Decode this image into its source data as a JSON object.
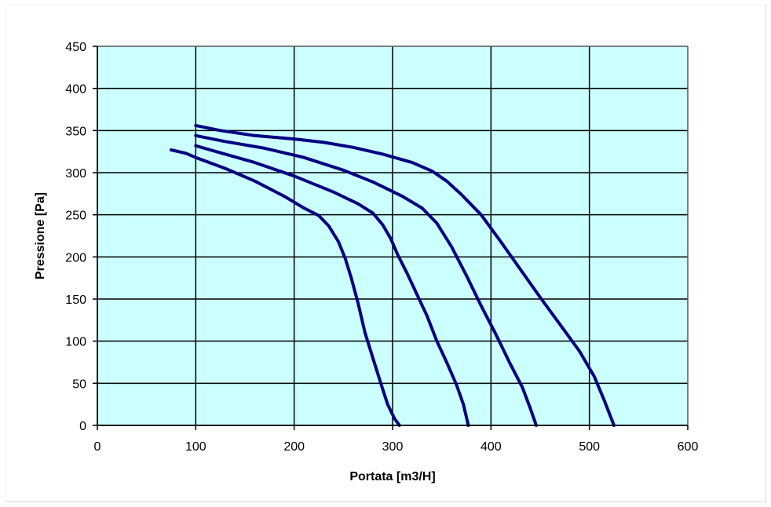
{
  "chart_data": {
    "type": "line",
    "title": "",
    "xlabel": "Portata [m3/H]",
    "ylabel": "Pressione [Pa]",
    "xlim": [
      0,
      600
    ],
    "ylim": [
      0,
      450
    ],
    "xticks": [
      0,
      100,
      200,
      300,
      400,
      500,
      600
    ],
    "yticks": [
      0,
      50,
      100,
      150,
      200,
      250,
      300,
      350,
      400,
      450
    ],
    "grid": true,
    "legend": "none",
    "colors": {
      "plot_background": "#ccffff",
      "line": "#000080",
      "grid": "#000000"
    },
    "series": [
      {
        "x": [
          75,
          90,
          100,
          130,
          160,
          190,
          210,
          225,
          235,
          245,
          252,
          258,
          265,
          272,
          280,
          288,
          295,
          302,
          307
        ],
        "y": [
          327,
          323,
          318,
          305,
          290,
          272,
          258,
          249,
          237,
          218,
          198,
          175,
          145,
          110,
          80,
          50,
          25,
          8,
          0
        ]
      },
      {
        "x": [
          100,
          130,
          160,
          200,
          240,
          265,
          280,
          290,
          298,
          305,
          315,
          325,
          335,
          345,
          355,
          365,
          372,
          377
        ],
        "y": [
          332,
          322,
          312,
          296,
          277,
          263,
          252,
          238,
          222,
          203,
          180,
          155,
          130,
          100,
          75,
          48,
          25,
          0
        ]
      },
      {
        "x": [
          100,
          130,
          170,
          210,
          250,
          280,
          310,
          330,
          345,
          360,
          375,
          390,
          405,
          420,
          432,
          440,
          446
        ],
        "y": [
          344,
          337,
          329,
          318,
          303,
          289,
          272,
          258,
          240,
          212,
          178,
          142,
          108,
          72,
          45,
          20,
          0
        ]
      },
      {
        "x": [
          100,
          125,
          160,
          200,
          230,
          260,
          290,
          320,
          340,
          355,
          370,
          390,
          410,
          430,
          450,
          470,
          490,
          505,
          515,
          525
        ],
        "y": [
          356,
          350,
          344,
          340,
          336,
          330,
          322,
          312,
          302,
          290,
          274,
          250,
          218,
          185,
          152,
          120,
          88,
          58,
          30,
          0
        ]
      }
    ]
  }
}
